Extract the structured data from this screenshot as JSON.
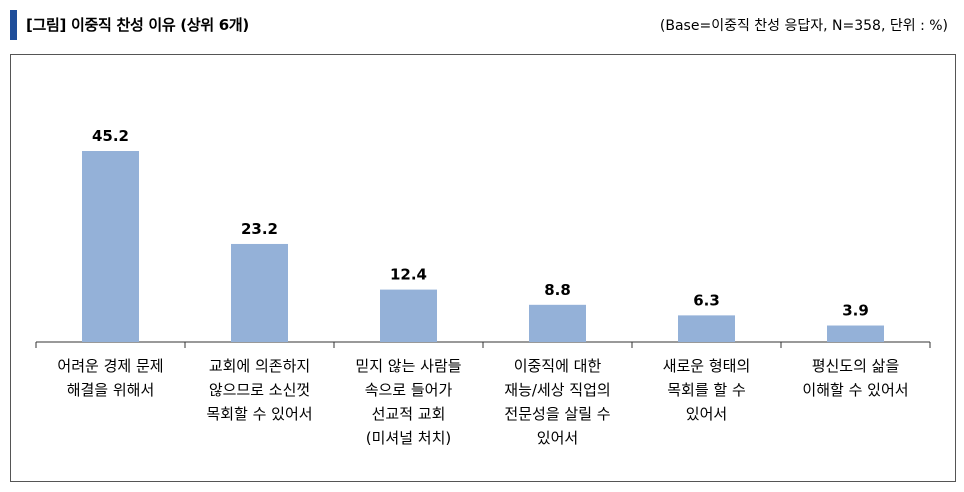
{
  "header": {
    "title": "[그림] 이중직 찬성 이유 (상위 6개)",
    "base_note": "(Base=이중직 찬성 응답자, N=358, 단위 : %)"
  },
  "chart_data": {
    "type": "bar",
    "categories": [
      [
        "어려운 경제 문제",
        "해결을 위해서"
      ],
      [
        "교회에 의존하지",
        "않으므로 소신껏",
        "목회할 수 있어서"
      ],
      [
        "믿지 않는 사람들",
        "속으로 들어가",
        "선교적 교회",
        "(미셔널 처치)"
      ],
      [
        "이중직에 대한",
        "재능/세상 직업의",
        "전문성을 살릴 수",
        "있어서"
      ],
      [
        "새로운 형태의",
        "목회를 할 수",
        "있어서"
      ],
      [
        "평신도의 삶을",
        "이해할 수 있어서"
      ]
    ],
    "values": [
      45.2,
      23.2,
      12.4,
      8.8,
      6.3,
      3.9
    ],
    "value_labels": [
      "45.2",
      "23.2",
      "12.4",
      "8.8",
      "6.3",
      "3.9"
    ],
    "ylim": [
      0,
      45.2
    ],
    "grid": false,
    "colors": {
      "bar": "#94b1d8",
      "accent": "#1f4e9a"
    }
  }
}
